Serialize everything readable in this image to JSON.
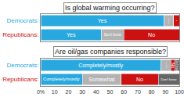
{
  "chart_data": [
    {
      "type": "bar",
      "title": "Is global warming occurring?",
      "orientation": "horizontal",
      "stacked": true,
      "tick_labels": "y",
      "categories": [
        "Democrats:",
        "Republicans:"
      ],
      "xlim": [
        0,
        100
      ],
      "series": [
        {
          "name": "Yes",
          "color": "#29a8e0",
          "values": [
            89,
            44
          ]
        },
        {
          "name": "Don't know",
          "color": "#b3b3b3",
          "values": [
            7,
            16
          ]
        },
        {
          "name": "No",
          "color": "#cc1111",
          "values": [
            4,
            40
          ]
        }
      ]
    },
    {
      "type": "bar",
      "title": "Are oil/gas companies responsible?",
      "orientation": "horizontal",
      "stacked": true,
      "categories": [
        "Democrats:",
        "Republicans:"
      ],
      "xlim": [
        0,
        100
      ],
      "xticks": [
        {
          "value": 0,
          "label": "0%"
        },
        10,
        20,
        30,
        40,
        50,
        60,
        70,
        80,
        90,
        100
      ],
      "series": [
        {
          "name": "Completely/mostly",
          "color": "#29a8e0",
          "values": [
            87,
            30
          ]
        },
        {
          "name": "Somewhat",
          "color": "#b3b3b3",
          "values": [
            7,
            28
          ]
        },
        {
          "name": "No",
          "color": "#cc1111",
          "values": [
            3,
            27
          ]
        },
        {
          "name": "Don't know",
          "color": "#666666",
          "values": [
            3,
            15
          ]
        }
      ]
    }
  ]
}
